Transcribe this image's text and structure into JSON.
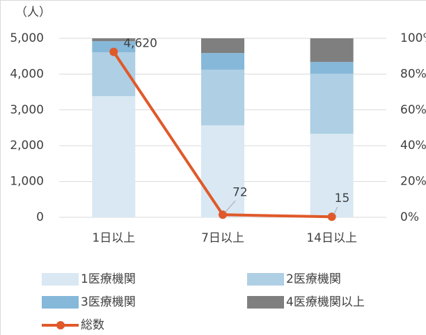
{
  "chart_data": {
    "type": "stacked-bar-line",
    "y_label": "（人）",
    "categories": [
      "1日以上",
      "7日以上",
      "14日以上"
    ],
    "series": [
      {
        "name": "1医療機関",
        "color": "#d9e8f3",
        "values": [
          67.7,
          51.4,
          46.7
        ],
        "axis": "y2"
      },
      {
        "name": "2医療機関",
        "color": "#aecfe4",
        "values": [
          24.5,
          31.1,
          33.5
        ],
        "axis": "y2"
      },
      {
        "name": "3医療機関",
        "color": "#86b8d9",
        "values": [
          6.2,
          9.3,
          6.6
        ],
        "axis": "y2"
      },
      {
        "name": "4医療機関以上",
        "color": "#7f7f7f",
        "values": [
          1.6,
          8.2,
          13.2
        ],
        "axis": "y2"
      },
      {
        "name": "総数",
        "color": "#e0592a",
        "values": [
          4620,
          72,
          15
        ],
        "value_labels": [
          "4,620",
          "72",
          "15"
        ],
        "type": "line"
      }
    ],
    "ylim": [
      0,
      5000
    ],
    "yticks": [
      0,
      {
        "value": 1000,
        "label": "1,000"
      },
      {
        "value": 2000,
        "label": "2,000"
      },
      {
        "value": 3000,
        "label": "3,000"
      },
      {
        "value": 4000,
        "label": "4,000"
      },
      {
        "value": 5000,
        "label": "5,000"
      }
    ],
    "y2lim": [
      0,
      100
    ],
    "y2ticks": [
      {
        "value": 0,
        "label": "0%"
      },
      {
        "value": 20,
        "label": "20%"
      },
      {
        "value": 40,
        "label": "40%"
      },
      {
        "value": 60,
        "label": "60%"
      },
      {
        "value": 80,
        "label": "80%"
      },
      {
        "value": 100,
        "label": "100%"
      }
    ],
    "grid": true
  }
}
